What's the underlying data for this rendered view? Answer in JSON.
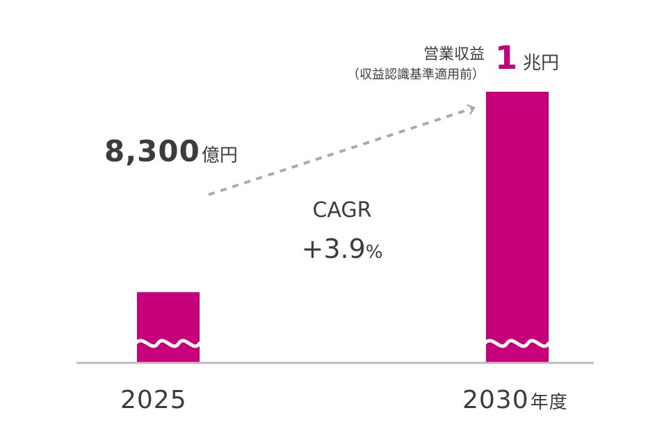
{
  "chart_data": {
    "type": "bar",
    "categories": [
      "2025",
      "2030"
    ],
    "values": [
      8300,
      10000
    ],
    "value_unit": "億円",
    "axis_broken": true,
    "x_suffix": "年度",
    "colors": {
      "bar": "#c5007a",
      "axis": "#bbbbbb",
      "arrow": "#aaaaaa",
      "text": "#3c3c3c"
    },
    "labels": {
      "bar1_value": "8,300",
      "bar1_unit": "億円",
      "bar2_value": "1",
      "bar2_unit": "兆円",
      "bar2_title": "営業収益",
      "bar2_note": "（収益認識基準適用前）"
    },
    "annotation": {
      "title": "CAGR",
      "value": "+3.9",
      "suffix": "%"
    }
  }
}
